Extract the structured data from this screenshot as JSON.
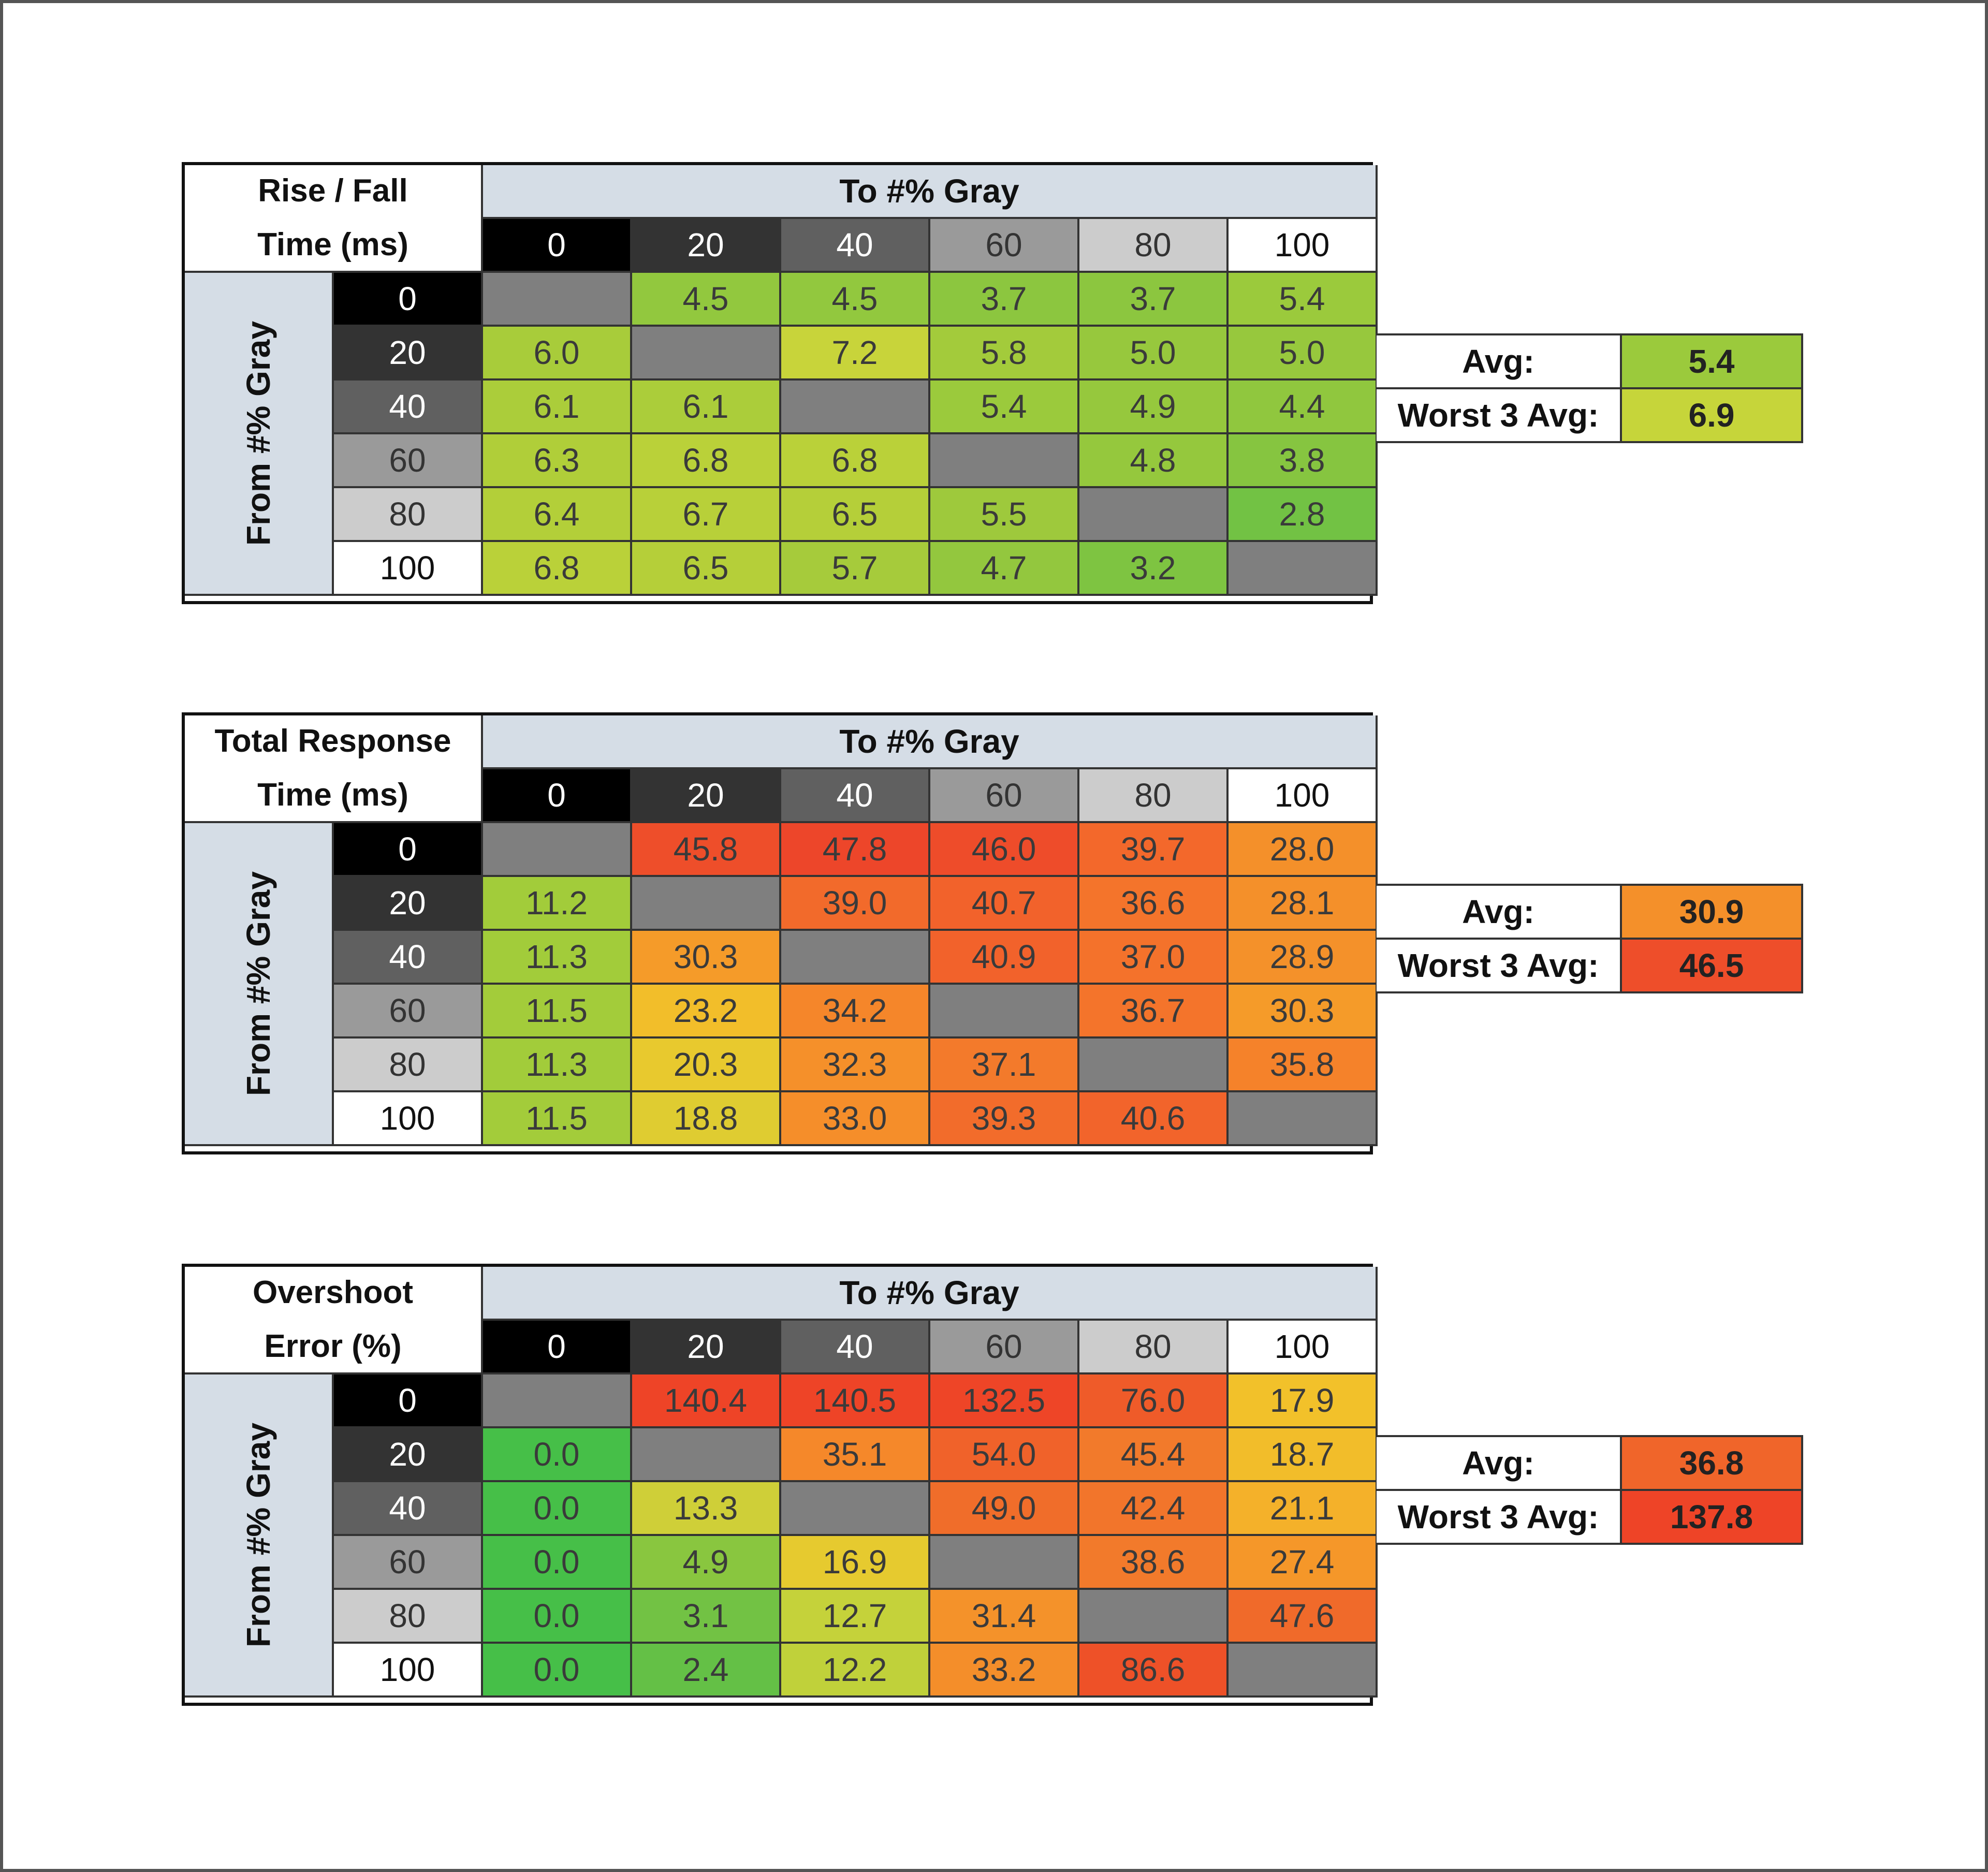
{
  "tables": [
    {
      "title_lines": [
        "Rise / Fall",
        "Time (ms)"
      ],
      "to_label": "To #% Gray",
      "from_label": "From #% Gray",
      "headers": [
        "0",
        "20",
        "40",
        "60",
        "80",
        "100"
      ],
      "cells": [
        [
          "",
          "4.5",
          "4.5",
          "3.7",
          "3.7",
          "5.4"
        ],
        [
          "6.0",
          "",
          "7.2",
          "5.8",
          "5.0",
          "5.0"
        ],
        [
          "6.1",
          "6.1",
          "",
          "5.4",
          "4.9",
          "4.4"
        ],
        [
          "6.3",
          "6.8",
          "6.8",
          "",
          "4.8",
          "3.8"
        ],
        [
          "6.4",
          "6.7",
          "6.5",
          "5.5",
          "",
          "2.8"
        ],
        [
          "6.8",
          "6.5",
          "5.7",
          "4.7",
          "3.2",
          ""
        ]
      ],
      "avg_label": "Avg:",
      "avg_value": "5.4",
      "worst_label": "Worst 3 Avg:",
      "worst_value": "6.9",
      "avg_color": "#9bca3c",
      "worst_color": "#c6d53a"
    },
    {
      "title_lines": [
        "Total Response",
        "Time (ms)"
      ],
      "to_label": "To #% Gray",
      "from_label": "From #% Gray",
      "headers": [
        "0",
        "20",
        "40",
        "60",
        "80",
        "100"
      ],
      "cells": [
        [
          "",
          "45.8",
          "47.8",
          "46.0",
          "39.7",
          "28.0"
        ],
        [
          "11.2",
          "",
          "39.0",
          "40.7",
          "36.6",
          "28.1"
        ],
        [
          "11.3",
          "30.3",
          "",
          "40.9",
          "37.0",
          "28.9"
        ],
        [
          "11.5",
          "23.2",
          "34.2",
          "",
          "36.7",
          "30.3"
        ],
        [
          "11.3",
          "20.3",
          "32.3",
          "37.1",
          "",
          "35.8"
        ],
        [
          "11.5",
          "18.8",
          "33.0",
          "39.3",
          "40.6",
          ""
        ]
      ],
      "avg_label": "Avg:",
      "avg_value": "30.9",
      "worst_label": "Worst 3 Avg:",
      "worst_value": "46.5",
      "avg_color": "#f4902a",
      "worst_color": "#ee4e2a"
    },
    {
      "title_lines": [
        "Overshoot",
        "Error (%)"
      ],
      "to_label": "To #% Gray",
      "from_label": "From #% Gray",
      "headers": [
        "0",
        "20",
        "40",
        "60",
        "80",
        "100"
      ],
      "cells": [
        [
          "",
          "140.4",
          "140.5",
          "132.5",
          "76.0",
          "17.9"
        ],
        [
          "0.0",
          "",
          "35.1",
          "54.0",
          "45.4",
          "18.7"
        ],
        [
          "0.0",
          "13.3",
          "",
          "49.0",
          "42.4",
          "21.1"
        ],
        [
          "0.0",
          "4.9",
          "16.9",
          "",
          "38.6",
          "27.4"
        ],
        [
          "0.0",
          "3.1",
          "12.7",
          "31.4",
          "",
          "47.6"
        ],
        [
          "0.0",
          "2.4",
          "12.2",
          "33.2",
          "86.6",
          ""
        ]
      ],
      "avg_label": "Avg:",
      "avg_value": "36.8",
      "worst_label": "Worst 3 Avg:",
      "worst_value": "137.8",
      "avg_color": "#f0652a",
      "worst_color": "#ee4427"
    }
  ],
  "colors": {
    "header_shades": [
      "#000000",
      "#333333",
      "#606060",
      "#9a9a9a",
      "#cccccc",
      "#ffffff"
    ],
    "header_text": [
      "#ffffff",
      "#ffffff",
      "#ffffff",
      "#333333",
      "#333333",
      "#111111"
    ],
    "diagonal": "#7f7f7f",
    "label_bg": "#d5dde6",
    "cells": [
      [
        [
          "#7f7f7f",
          "#92c83e",
          "#92c83e",
          "#8cc63f",
          "#8cc63f",
          "#9bca3c"
        ],
        [
          "#a8cc3a",
          "#7f7f7f",
          "#c8d43a",
          "#a3cb3b",
          "#97c83d",
          "#97c83d"
        ],
        [
          "#abcd3a",
          "#abcd3a",
          "#7f7f7f",
          "#9bca3c",
          "#96c83d",
          "#90c73e"
        ],
        [
          "#b0ce39",
          "#bad139",
          "#bad139",
          "#7f7f7f",
          "#95c83d",
          "#86c540"
        ],
        [
          "#b3cf39",
          "#b8d039",
          "#b5cf39",
          "#9ec93c",
          "#7f7f7f",
          "#72c244"
        ],
        [
          "#bad139",
          "#b5cf39",
          "#a6cb3b",
          "#93c73e",
          "#7ec441",
          "#7f7f7f"
        ]
      ],
      [
        [
          "#7f7f7f",
          "#ee4e2a",
          "#ed462a",
          "#ee4c2a",
          "#f3682b",
          "#f4902a"
        ],
        [
          "#a2cc3a",
          "#7f7f7f",
          "#f26a2b",
          "#f2622b",
          "#f4742b",
          "#f4902a"
        ],
        [
          "#a2cc3a",
          "#f59b29",
          "#7f7f7f",
          "#f2622b",
          "#f4722b",
          "#f4912a"
        ],
        [
          "#a3cc3a",
          "#f2be2a",
          "#f5862a",
          "#7f7f7f",
          "#f4742b",
          "#f59b29"
        ],
        [
          "#a2cc3a",
          "#e8c92e",
          "#f5902a",
          "#f37a2b",
          "#7f7f7f",
          "#f5822a"
        ],
        [
          "#a3cc3a",
          "#dfcc31",
          "#f58e2a",
          "#f26c2b",
          "#f2642b",
          "#7f7f7f"
        ]
      ],
      [
        [
          "#7f7f7f",
          "#ee4427",
          "#ee4427",
          "#ee4527",
          "#ef5b29",
          "#f2c12a"
        ],
        [
          "#46bf48",
          "#7f7f7f",
          "#f5882a",
          "#f0622a",
          "#f27a2b",
          "#f2bd2a"
        ],
        [
          "#46bf48",
          "#cfcf38",
          "#7f7f7f",
          "#f06d2a",
          "#f2752b",
          "#f4b12a"
        ],
        [
          "#46bf48",
          "#89c63f",
          "#e6ca2f",
          "#7f7f7f",
          "#f27a2b",
          "#f59729"
        ],
        [
          "#46bf48",
          "#72c244",
          "#c5d23a",
          "#f4922a",
          "#7f7f7f",
          "#f06a2a"
        ],
        [
          "#46bf48",
          "#64c046",
          "#c0d13a",
          "#f48e2a",
          "#ee5128",
          "#7f7f7f"
        ]
      ]
    ]
  }
}
